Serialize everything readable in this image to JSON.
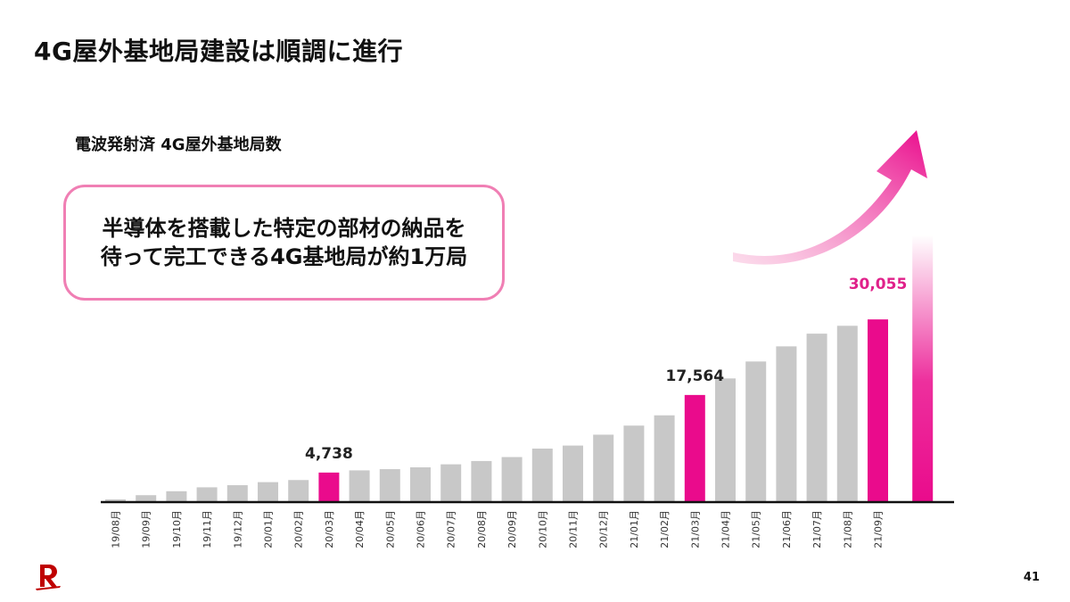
{
  "slide": {
    "title": "4G屋外基地局建設は順調に進行",
    "subtitle": "電波発射済 4G屋外基地局数",
    "callout_line1": "半導体を搭載した特定の部材の納品を",
    "callout_line2": "待って完工できる4G基地局が約1万局",
    "page_number": "41",
    "logo_icon": "rakuten-r-logo-icon"
  },
  "colors": {
    "highlight": "#ea0b8c",
    "bar": "#c8c8c8",
    "callout_border": "#f07fb4",
    "highlight_label": "#e0218a"
  },
  "chart_data": {
    "type": "bar",
    "categories": [
      "19/08月",
      "19/09月",
      "19/10月",
      "19/11月",
      "19/12月",
      "20/01月",
      "20/02月",
      "20/03月",
      "20/04月",
      "20/05月",
      "20/06月",
      "20/07月",
      "20/08月",
      "20/09月",
      "20/10月",
      "20/11月",
      "20/12月",
      "21/01月",
      "21/02月",
      "21/03月",
      "21/04月",
      "21/05月",
      "21/06月",
      "21/07月",
      "21/08月",
      "21/09月"
    ],
    "values": [
      300,
      1000,
      1650,
      2300,
      2650,
      3150,
      3500,
      4738,
      5100,
      5300,
      5600,
      6100,
      6650,
      7300,
      8700,
      9200,
      11000,
      12500,
      14200,
      17564,
      20300,
      23100,
      25600,
      27700,
      29000,
      30055
    ],
    "highlighted": [
      "20/03月",
      "21/03月",
      "21/09月"
    ],
    "data_labels": [
      {
        "category": "20/03月",
        "text": "4,738",
        "highlight": false
      },
      {
        "category": "21/03月",
        "text": "17,564",
        "highlight": false
      },
      {
        "category": "21/09月",
        "text": "30,055",
        "highlight": true
      }
    ],
    "extra_bar": {
      "description": "projected gradient bar (approx. +10,000)",
      "value": 44000
    },
    "ylim": [
      0,
      46000
    ],
    "title": "",
    "xlabel": "",
    "ylabel": ""
  }
}
